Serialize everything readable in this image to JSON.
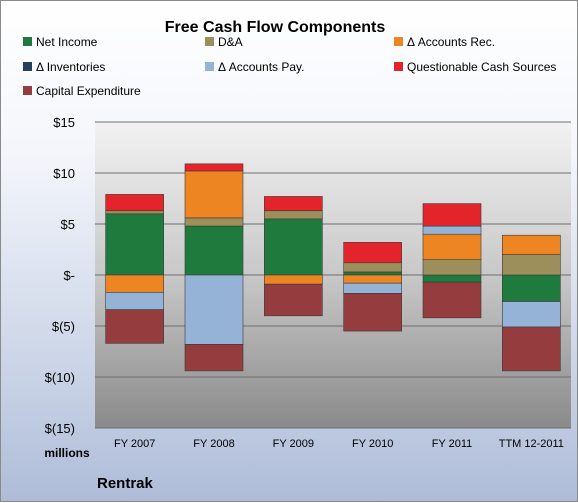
{
  "chart_data": {
    "type": "bar",
    "stacked": true,
    "title": "Free Cash Flow Components",
    "categories": [
      "FY 2007",
      "FY 2008",
      "FY 2009",
      "FY 2010",
      "FY 2011",
      "TTM 12-2011"
    ],
    "yunit_label": "millions",
    "ylim": [
      -15,
      15
    ],
    "yticks": [
      15,
      10,
      5,
      0,
      -5,
      -10,
      -15
    ],
    "ytick_labels": [
      "$15",
      "$10",
      "$5",
      "$-",
      "$(5)",
      "$(10)",
      "$(15)"
    ],
    "grid": true,
    "legend_position": "top",
    "company": "Rentrak",
    "series": [
      {
        "name": "Net Income",
        "color": "#1f7a3e",
        "values": [
          6.0,
          4.8,
          5.5,
          0.3,
          -0.7,
          -2.6
        ]
      },
      {
        "name": "D&A",
        "color": "#9c8f5c",
        "values": [
          0.3,
          0.8,
          0.8,
          0.9,
          1.5,
          2.0
        ]
      },
      {
        "name": "Δ Accounts Rec.",
        "color": "#ed8522",
        "values": [
          -1.7,
          4.6,
          -0.9,
          -0.8,
          2.5,
          1.9
        ]
      },
      {
        "name": "Δ Inventories",
        "color": "#243f60",
        "values": [
          0,
          0,
          0,
          0,
          0,
          0
        ]
      },
      {
        "name": "Δ Accounts Pay.",
        "color": "#95b3d7",
        "values": [
          -1.7,
          -6.8,
          0,
          -1.0,
          0.8,
          -2.5
        ]
      },
      {
        "name": "Questionable Cash Sources",
        "color": "#e3242b",
        "values": [
          1.6,
          0.7,
          1.4,
          2.0,
          2.2,
          0
        ]
      },
      {
        "name": "Capital Expenditure",
        "color": "#953d3e",
        "values": [
          -3.3,
          -2.6,
          -3.1,
          -3.7,
          -3.5,
          -4.3
        ]
      }
    ]
  }
}
